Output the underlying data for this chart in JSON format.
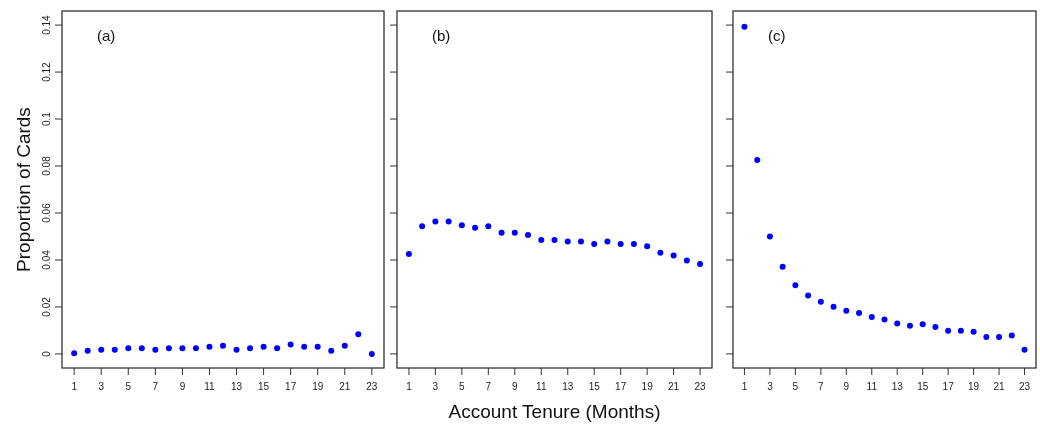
{
  "chart_data": [
    {
      "type": "scatter",
      "ylabel": "Proportion of Cards",
      "annotations": [
        "(a)"
      ],
      "x": [
        1,
        2,
        3,
        4,
        5,
        6,
        7,
        8,
        9,
        10,
        11,
        12,
        13,
        14,
        15,
        16,
        17,
        18,
        19,
        20,
        21,
        22,
        23
      ],
      "xlim": [
        0.1,
        23.9
      ],
      "xticks": [
        1,
        3,
        5,
        7,
        9,
        11,
        13,
        15,
        17,
        19,
        21,
        23
      ],
      "ylim": [
        -0.006,
        0.146
      ],
      "yticks": [
        0,
        0.02,
        0.04,
        0.06,
        0.08,
        0.1,
        0.12,
        0.14
      ],
      "marker": "circle",
      "series": [
        {
          "color": "#0000ff",
          "values": [
            0.0003,
            0.0013,
            0.0018,
            0.0018,
            0.0024,
            0.0024,
            0.0018,
            0.0024,
            0.0024,
            0.0024,
            0.003,
            0.0035,
            0.0018,
            0.0024,
            0.003,
            0.0024,
            0.004,
            0.003,
            0.003,
            0.0013,
            0.0035,
            0.0084,
            0.0
          ]
        }
      ]
    },
    {
      "type": "scatter",
      "xlabel": "Account Tenure (Months)",
      "annotations": [
        "(b)"
      ],
      "x": [
        1,
        2,
        3,
        4,
        5,
        6,
        7,
        8,
        9,
        10,
        11,
        12,
        13,
        14,
        15,
        16,
        17,
        18,
        19,
        20,
        21,
        22,
        23
      ],
      "xlim": [
        0.1,
        23.9
      ],
      "xticks": [
        1,
        3,
        5,
        7,
        9,
        11,
        13,
        15,
        17,
        19,
        21,
        23
      ],
      "ylim": [
        -0.006,
        0.146
      ],
      "yticks": [
        {
          "value": 0,
          "label": null
        },
        {
          "value": 0.02,
          "label": null
        },
        {
          "value": 0.04,
          "label": null
        },
        {
          "value": 0.06,
          "label": null
        },
        {
          "value": 0.08,
          "label": null
        },
        {
          "value": 0.1,
          "label": null
        },
        {
          "value": 0.12,
          "label": null
        },
        {
          "value": 0.14,
          "label": null
        }
      ],
      "tick_labels": "x",
      "marker": "circle",
      "series": [
        {
          "color": "#0000ff",
          "values": [
            0.0425,
            0.0543,
            0.0564,
            0.0564,
            0.0548,
            0.0537,
            0.0543,
            0.0516,
            0.0516,
            0.0506,
            0.0485,
            0.0485,
            0.0479,
            0.0479,
            0.0468,
            0.0479,
            0.0468,
            0.0468,
            0.0458,
            0.0431,
            0.0419,
            0.0398,
            0.0383
          ]
        }
      ]
    },
    {
      "type": "scatter",
      "annotations": [
        "(c)"
      ],
      "x": [
        1,
        2,
        3,
        4,
        5,
        6,
        7,
        8,
        9,
        10,
        11,
        12,
        13,
        14,
        15,
        16,
        17,
        18,
        19,
        20,
        21,
        22,
        23
      ],
      "xlim": [
        0.1,
        23.9
      ],
      "xticks": [
        1,
        3,
        5,
        7,
        9,
        11,
        13,
        15,
        17,
        19,
        21,
        23
      ],
      "ylim": [
        -0.006,
        0.146
      ],
      "yticks": [
        {
          "value": 0,
          "label": null
        },
        {
          "value": 0.02,
          "label": null
        },
        {
          "value": 0.04,
          "label": null
        },
        {
          "value": 0.06,
          "label": null
        },
        {
          "value": 0.08,
          "label": null
        },
        {
          "value": 0.1,
          "label": null
        },
        {
          "value": 0.12,
          "label": null
        },
        {
          "value": 0.14,
          "label": null
        }
      ],
      "tick_labels": "x",
      "marker": "circle",
      "series": [
        {
          "color": "#0000ff",
          "values": [
            0.1393,
            0.0826,
            0.05,
            0.0371,
            0.0292,
            0.0249,
            0.0222,
            0.0201,
            0.0184,
            0.0174,
            0.0157,
            0.0147,
            0.013,
            0.012,
            0.0126,
            0.0115,
            0.0099,
            0.0099,
            0.0094,
            0.0072,
            0.0072,
            0.0078,
            0.0018
          ]
        }
      ]
    }
  ]
}
